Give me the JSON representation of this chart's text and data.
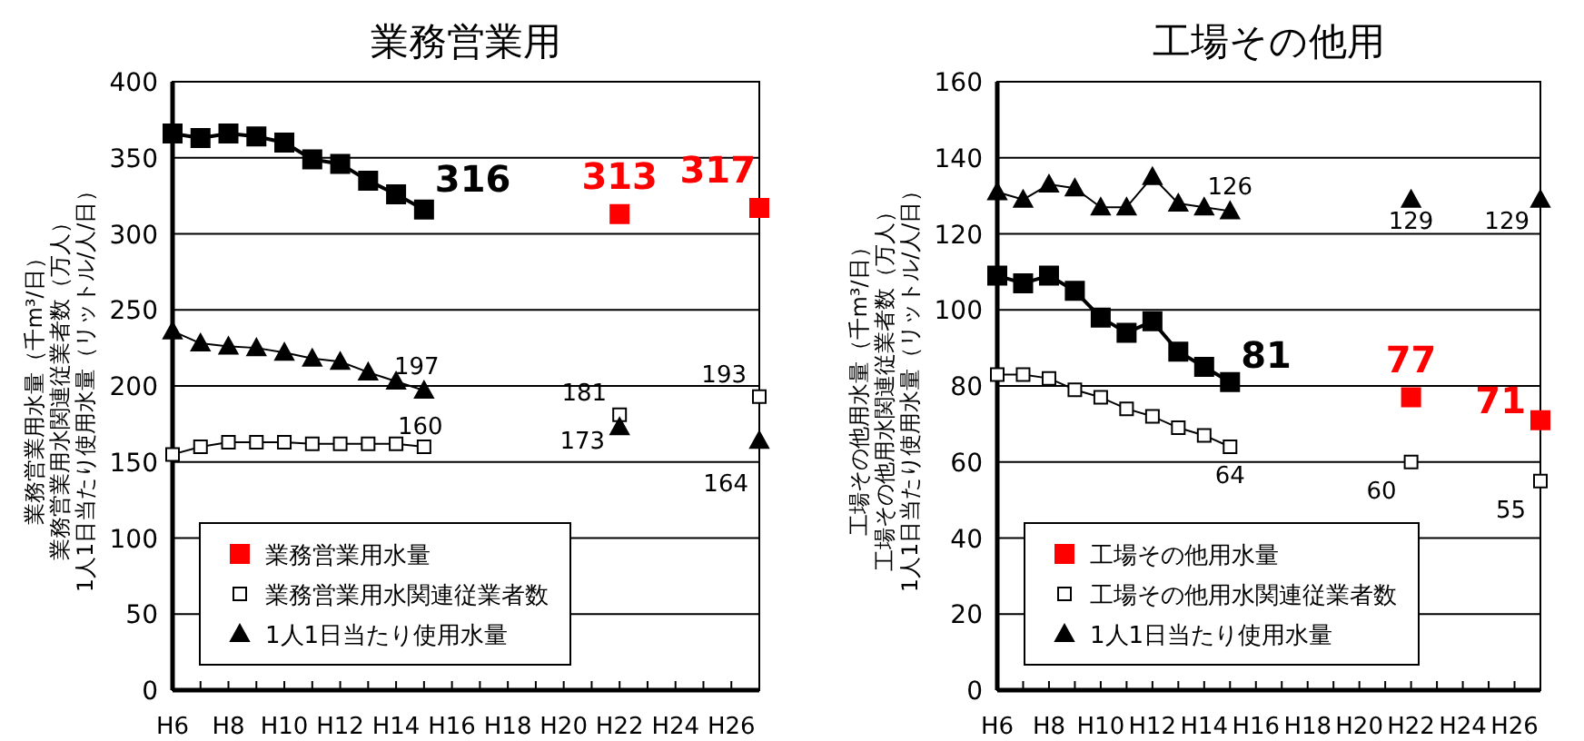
{
  "chart_data": [
    {
      "type": "line",
      "title": "業務営業用",
      "ylabel": "業務営業用水量（千m³/日）業務営業用水関連従業者数（万人）1人1日当たり使用水量（リットル/人/日）",
      "categories": [
        "H6",
        null,
        "H8",
        null,
        "H10",
        null,
        "H12",
        null,
        "H14",
        null,
        "H16",
        null,
        "H18",
        null,
        "H20",
        null,
        "H22",
        null,
        "H24",
        null,
        "H26",
        null
      ],
      "ylim": [
        0,
        400
      ],
      "yticks": [
        0,
        50,
        100,
        150,
        200,
        250,
        300,
        350,
        400
      ],
      "grid": "y",
      "legend": "bottom left",
      "series": [
        {
          "name": "業務営業用水量",
          "type": "scatter",
          "marker": "square",
          "color": "#ff0000",
          "values": [
            null,
            null,
            null,
            null,
            null,
            null,
            null,
            null,
            null,
            null,
            null,
            null,
            null,
            null,
            null,
            null,
            313,
            null,
            null,
            null,
            null,
            317
          ],
          "value_labels": [
            null,
            null,
            null,
            null,
            null,
            null,
            null,
            null,
            null,
            null,
            null,
            null,
            null,
            null,
            null,
            null,
            "313",
            null,
            null,
            null,
            null,
            "317"
          ]
        },
        {
          "type": "line",
          "marker": "square",
          "color": "#000000",
          "values": [
            366,
            363,
            366,
            364,
            360,
            349,
            346,
            335,
            326,
            316,
            null,
            null,
            null,
            null,
            null,
            null,
            null,
            null,
            null,
            null,
            null,
            null
          ],
          "value_labels": [
            null,
            null,
            null,
            null,
            null,
            null,
            null,
            null,
            null,
            "316",
            null,
            null,
            null,
            null,
            null,
            null,
            null,
            null,
            null,
            null,
            null,
            null
          ]
        },
        {
          "name": "業務営業用水関連従業者数",
          "type": "line",
          "marker": "square",
          "color": "#ffffff",
          "values": [
            155,
            160,
            163,
            163,
            163,
            162,
            162,
            162,
            162,
            160,
            null,
            null,
            null,
            null,
            null,
            null,
            null,
            null,
            null,
            null,
            null,
            null
          ],
          "value_labels": [
            null,
            null,
            null,
            null,
            null,
            null,
            null,
            null,
            null,
            "160",
            null,
            null,
            null,
            null,
            null,
            null,
            null,
            null,
            null,
            null,
            null,
            null
          ]
        },
        {
          "type": "scatter",
          "marker": "square",
          "color": "#ffffff",
          "values": [
            null,
            null,
            null,
            null,
            null,
            null,
            null,
            null,
            null,
            null,
            null,
            null,
            null,
            null,
            null,
            null,
            181,
            null,
            null,
            null,
            null,
            193
          ],
          "value_labels": [
            null,
            null,
            null,
            null,
            null,
            null,
            null,
            null,
            null,
            null,
            null,
            null,
            null,
            null,
            null,
            null,
            "181",
            null,
            null,
            null,
            null,
            "193"
          ]
        },
        {
          "name": "1人1日当たり使用水量",
          "type": "line",
          "marker": "triangle",
          "color": "#000000",
          "values": [
            236,
            228,
            226,
            225,
            222,
            218,
            216,
            209,
            203,
            197,
            null,
            null,
            null,
            null,
            null,
            null,
            null,
            null,
            null,
            null,
            null,
            null
          ],
          "value_labels": [
            null,
            null,
            null,
            null,
            null,
            null,
            null,
            null,
            null,
            "197",
            null,
            null,
            null,
            null,
            null,
            null,
            null,
            null,
            null,
            null,
            null,
            null
          ]
        },
        {
          "type": "scatter",
          "marker": "triangle",
          "color": "#000000",
          "values": [
            null,
            null,
            null,
            null,
            null,
            null,
            null,
            null,
            null,
            null,
            null,
            null,
            null,
            null,
            null,
            null,
            173,
            null,
            null,
            null,
            null,
            164
          ],
          "value_labels": [
            null,
            null,
            null,
            null,
            null,
            null,
            null,
            null,
            null,
            null,
            null,
            null,
            null,
            null,
            null,
            null,
            "173",
            null,
            null,
            null,
            null,
            "164"
          ]
        }
      ]
    },
    {
      "type": "line",
      "title": "工場その他用",
      "ylabel": "工場その他用水量（千m³/日）工場その他用水関連従業者数（万人）1人1日当たり使用水量（リットル/人/日）",
      "categories": [
        "H6",
        null,
        "H8",
        null,
        "H10",
        null,
        "H12",
        null,
        "H14",
        null,
        "H16",
        null,
        "H18",
        null,
        "H20",
        null,
        "H22",
        null,
        "H24",
        null,
        "H26",
        null
      ],
      "ylim": [
        0,
        160
      ],
      "yticks": [
        0,
        20,
        40,
        60,
        80,
        100,
        120,
        140,
        160
      ],
      "grid": "y",
      "legend": "bottom left",
      "series": [
        {
          "name": "工場その他用水量",
          "type": "scatter",
          "marker": "square",
          "color": "#ff0000",
          "values": [
            null,
            null,
            null,
            null,
            null,
            null,
            null,
            null,
            null,
            null,
            null,
            null,
            null,
            null,
            null,
            null,
            77,
            null,
            null,
            null,
            null,
            71
          ],
          "value_labels": [
            null,
            null,
            null,
            null,
            null,
            null,
            null,
            null,
            null,
            null,
            null,
            null,
            null,
            null,
            null,
            null,
            "77",
            null,
            null,
            null,
            null,
            "71"
          ]
        },
        {
          "type": "line",
          "marker": "square",
          "color": "#000000",
          "values": [
            109,
            107,
            109,
            105,
            98,
            94,
            97,
            89,
            85,
            81,
            null,
            null,
            null,
            null,
            null,
            null,
            null,
            null,
            null,
            null,
            null,
            null
          ],
          "value_labels": [
            null,
            null,
            null,
            null,
            null,
            null,
            null,
            null,
            null,
            "81",
            null,
            null,
            null,
            null,
            null,
            null,
            null,
            null,
            null,
            null,
            null,
            null
          ]
        },
        {
          "name": "工場その他用水関連従業者数",
          "type": "line",
          "marker": "square",
          "color": "#ffffff",
          "values": [
            83,
            83,
            82,
            79,
            77,
            74,
            72,
            69,
            67,
            64,
            null,
            null,
            null,
            null,
            null,
            null,
            null,
            null,
            null,
            null,
            null,
            null
          ],
          "value_labels": [
            null,
            null,
            null,
            null,
            null,
            null,
            null,
            null,
            null,
            "64",
            null,
            null,
            null,
            null,
            null,
            null,
            null,
            null,
            null,
            null,
            null,
            null
          ]
        },
        {
          "type": "scatter",
          "marker": "square",
          "color": "#ffffff",
          "values": [
            null,
            null,
            null,
            null,
            null,
            null,
            null,
            null,
            null,
            null,
            null,
            null,
            null,
            null,
            null,
            null,
            60,
            null,
            null,
            null,
            null,
            55
          ],
          "value_labels": [
            null,
            null,
            null,
            null,
            null,
            null,
            null,
            null,
            null,
            null,
            null,
            null,
            null,
            null,
            null,
            null,
            "60",
            null,
            null,
            null,
            null,
            "55"
          ]
        },
        {
          "name": "1人1日当たり使用水量",
          "type": "line",
          "marker": "triangle",
          "color": "#000000",
          "values": [
            131,
            129,
            133,
            132,
            127,
            127,
            135,
            128,
            127,
            126,
            null,
            null,
            null,
            null,
            null,
            null,
            null,
            null,
            null,
            null,
            null,
            null
          ],
          "value_labels": [
            null,
            null,
            null,
            null,
            null,
            null,
            null,
            null,
            null,
            "126",
            null,
            null,
            null,
            null,
            null,
            null,
            null,
            null,
            null,
            null,
            null,
            null
          ]
        },
        {
          "type": "scatter",
          "marker": "triangle",
          "color": "#000000",
          "values": [
            null,
            null,
            null,
            null,
            null,
            null,
            null,
            null,
            null,
            null,
            null,
            null,
            null,
            null,
            null,
            null,
            129,
            null,
            null,
            null,
            null,
            129
          ],
          "value_labels": [
            null,
            null,
            null,
            null,
            null,
            null,
            null,
            null,
            null,
            null,
            null,
            null,
            null,
            null,
            null,
            null,
            "129",
            null,
            null,
            null,
            null,
            "129"
          ]
        }
      ]
    }
  ]
}
